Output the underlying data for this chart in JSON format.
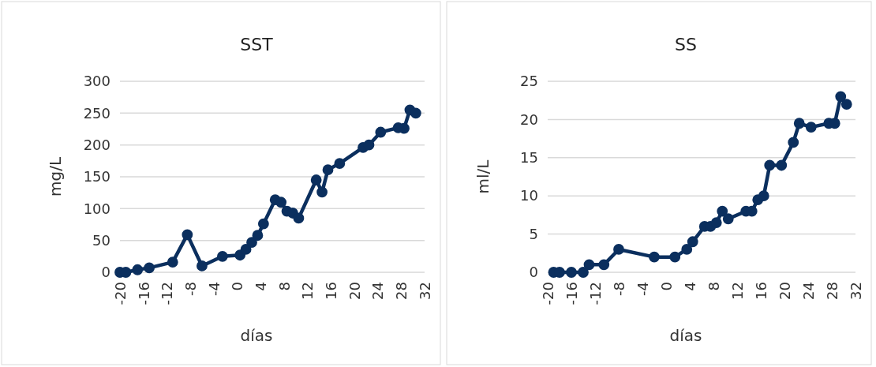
{
  "chart_data": [
    {
      "type": "line",
      "title": "SST",
      "xlabel": "días",
      "ylabel": "mg/L",
      "marker": "circle",
      "grid": "y",
      "xlim": [
        -20,
        32
      ],
      "xticks": [
        -20,
        -16,
        -12,
        -8,
        -4,
        0,
        4,
        8,
        12,
        16,
        20,
        24,
        28,
        32
      ],
      "ylim": [
        0,
        300
      ],
      "yticks": [
        0,
        50,
        100,
        150,
        200,
        250,
        300
      ],
      "series": [
        {
          "color": "#0b2f5e",
          "x": [
            -20,
            -19,
            -17,
            -15,
            -11,
            -8.5,
            -6,
            -2.5,
            0.5,
            1.5,
            2.5,
            3.5,
            4.5,
            6.5,
            7.5,
            8.5,
            9.5,
            10.5,
            13.5,
            14.5,
            15.5,
            17.5,
            21.5,
            22.5,
            24.5,
            27.5,
            28.5,
            29.5,
            30.5
          ],
          "values": [
            0,
            0,
            4,
            7,
            16,
            59,
            10,
            25,
            27,
            36,
            47,
            58,
            76,
            114,
            110,
            96,
            93,
            85,
            145,
            126,
            161,
            171,
            196,
            200,
            220,
            227,
            226,
            255,
            250
          ]
        }
      ]
    },
    {
      "type": "line",
      "title": "SS",
      "xlabel": "días",
      "ylabel": "ml/L",
      "marker": "circle",
      "grid": "y",
      "xlim": [
        -20,
        32
      ],
      "xticks": [
        -20,
        -16,
        -12,
        -8,
        -4,
        0,
        4,
        8,
        12,
        16,
        20,
        24,
        28,
        32
      ],
      "ylim": [
        0,
        25
      ],
      "yticks": [
        0,
        5,
        10,
        15,
        20,
        25
      ],
      "series": [
        {
          "color": "#0b2f5e",
          "x": [
            -19,
            -18,
            -16,
            -14,
            -13,
            -10.5,
            -8,
            -2,
            1.5,
            3.5,
            4.5,
            6.5,
            7.5,
            8.5,
            9.5,
            10.5,
            13.5,
            14.5,
            15.5,
            16.5,
            17.5,
            19.5,
            21.5,
            22.5,
            24.5,
            27.5,
            28.5,
            29.5,
            30.5
          ],
          "values": [
            0,
            0,
            0,
            0,
            1,
            1,
            3,
            2,
            2,
            3,
            4,
            6,
            6,
            6.5,
            8,
            7,
            8,
            8,
            9.5,
            10,
            14,
            14,
            17,
            19.5,
            19,
            19.5,
            19.5,
            23,
            22
          ]
        }
      ]
    }
  ]
}
